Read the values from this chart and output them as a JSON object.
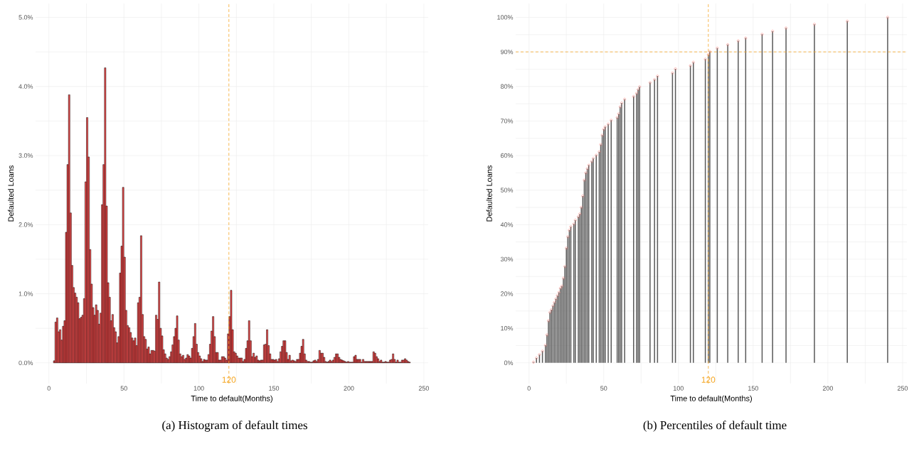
{
  "chart_data": [
    {
      "type": "histogram",
      "title": "(a) Histogram of default times",
      "xlabel": "Time to default(Months)",
      "ylabel": "Defaulted Loans",
      "color": "#f04848",
      "bins": [
        3,
        4,
        5,
        6,
        7,
        8,
        9,
        10,
        11,
        12,
        13,
        14,
        15,
        16,
        17,
        18,
        19,
        20,
        21,
        22,
        23,
        24,
        25,
        26,
        27,
        28,
        29,
        30,
        31,
        32,
        33,
        34,
        35,
        36,
        37,
        38,
        39,
        40,
        41,
        42,
        43,
        44,
        45,
        46,
        47,
        48,
        49,
        50,
        51,
        52,
        53,
        54,
        55,
        56,
        57,
        58,
        59,
        60,
        61,
        62,
        63,
        64,
        65,
        66,
        67,
        68,
        69,
        70,
        71,
        72,
        73,
        74,
        75,
        76,
        77,
        78,
        79,
        80,
        81,
        82,
        83,
        84,
        85,
        86,
        87,
        88,
        89,
        90,
        91,
        92,
        93,
        94,
        95,
        96,
        97,
        98,
        99,
        100,
        101,
        102,
        103,
        104,
        105,
        106,
        107,
        108,
        109,
        110,
        111,
        112,
        113,
        114,
        115,
        116,
        117,
        118,
        119,
        120,
        121,
        122,
        123,
        124,
        125,
        126,
        127,
        128,
        129,
        130,
        131,
        132,
        133,
        134,
        135,
        136,
        137,
        138,
        139,
        140,
        141,
        142,
        143,
        144,
        145,
        146,
        147,
        148,
        149,
        150,
        151,
        152,
        153,
        154,
        155,
        156,
        157,
        158,
        159,
        160,
        161,
        162,
        163,
        164,
        165,
        166,
        167,
        168,
        169,
        170,
        171,
        172,
        173,
        174,
        175,
        176,
        177,
        178,
        179,
        180,
        181,
        182,
        183,
        184,
        185,
        186,
        187,
        188,
        189,
        190,
        191,
        192,
        193,
        194,
        195,
        196,
        197,
        198,
        199,
        200,
        201,
        202,
        203,
        204,
        205,
        206,
        207,
        208,
        209,
        210,
        211,
        212,
        213,
        214,
        215,
        216,
        217,
        218,
        219,
        220,
        221,
        222,
        223,
        224,
        225,
        226,
        227,
        228,
        229,
        230,
        231,
        232,
        233,
        234,
        235,
        236,
        237,
        238,
        239,
        240,
        241
      ],
      "values": [
        0.03,
        0.59,
        0.65,
        0.45,
        0.48,
        0.33,
        0.53,
        0.61,
        1.89,
        2.87,
        3.88,
        2.17,
        1.41,
        1.09,
        1.01,
        0.95,
        0.87,
        0.64,
        0.66,
        0.69,
        0.93,
        2.62,
        3.55,
        2.98,
        1.64,
        1.14,
        0.8,
        0.69,
        0.84,
        0.76,
        0.56,
        0.72,
        2.29,
        2.87,
        4.27,
        2.27,
        1.16,
        0.95,
        0.61,
        0.7,
        0.51,
        0.45,
        0.29,
        0.38,
        1.3,
        1.69,
        2.54,
        1.53,
        0.76,
        0.54,
        0.51,
        0.44,
        0.36,
        0.32,
        0.36,
        0.25,
        0.87,
        0.95,
        1.84,
        0.7,
        0.38,
        0.34,
        0.2,
        0.23,
        0.13,
        0.18,
        0.18,
        0.17,
        0.69,
        0.63,
        1.17,
        0.5,
        0.39,
        0.19,
        0.13,
        0.07,
        0.05,
        0.09,
        0.16,
        0.26,
        0.38,
        0.5,
        0.68,
        0.33,
        0.13,
        0.09,
        0.11,
        0.05,
        0.07,
        0.12,
        0.1,
        0.07,
        0.21,
        0.38,
        0.57,
        0.27,
        0.15,
        0.1,
        0.06,
        0.02,
        0.05,
        0.04,
        0.04,
        0.12,
        0.27,
        0.46,
        0.67,
        0.38,
        0.15,
        0.15,
        0.04,
        0.04,
        0.09,
        0.09,
        0.07,
        0.04,
        0.42,
        0.67,
        1.05,
        0.48,
        0.16,
        0.14,
        0.1,
        0.07,
        0.07,
        0.07,
        0.02,
        0.05,
        0.21,
        0.32,
        0.61,
        0.32,
        0.09,
        0.14,
        0.08,
        0.1,
        0.04,
        0.03,
        0.04,
        0.04,
        0.26,
        0.27,
        0.48,
        0.25,
        0.13,
        0.05,
        0.05,
        0.04,
        0.05,
        0.02,
        0.06,
        0.16,
        0.24,
        0.32,
        0.32,
        0.15,
        0.05,
        0.11,
        0.03,
        0.04,
        0.03,
        0.02,
        0.05,
        0.05,
        0.14,
        0.24,
        0.34,
        0.13,
        0.04,
        0.02,
        0.02,
        0.01,
        0.01,
        0.03,
        0.04,
        0.02,
        0.05,
        0.18,
        0.14,
        0.14,
        0.08,
        0.02,
        0.01,
        0.02,
        0.04,
        0.02,
        0.04,
        0.08,
        0.13,
        0.13,
        0.08,
        0.05,
        0.04,
        0.03,
        0.02,
        0.01,
        0.02,
        0.01,
        0.01,
        0.01,
        0.09,
        0.11,
        0.05,
        0.05,
        0.05,
        0.01,
        0.05,
        0.02,
        0.02,
        0.02,
        0.02,
        0.02,
        0.02,
        0.16,
        0.14,
        0.09,
        0.06,
        0.02,
        0.04,
        0.01,
        0.01,
        0.02,
        0.01,
        0.01,
        0.04,
        0.05,
        0.13,
        0.05,
        0.01,
        0.04,
        0.01,
        0.01,
        0.04,
        0.04,
        0.06,
        0.04,
        0.02,
        0.01
      ],
      "xlim": [
        -8.9,
        252.9
      ],
      "ylim": [
        -0.3,
        5.2
      ],
      "xticks": [
        0,
        {
          "value": 25,
          "label": null
        },
        50,
        {
          "value": 75,
          "label": null
        },
        100,
        {
          "value": 125,
          "label": null
        },
        150,
        {
          "value": 175,
          "label": null
        },
        200,
        {
          "value": 225,
          "label": null
        },
        250
      ],
      "yticks": [
        {
          "value": 0,
          "label": "0.0%"
        },
        {
          "value": 0.5,
          "label": null
        },
        {
          "value": 1,
          "label": "1.0%"
        },
        {
          "value": 1.5,
          "label": null
        },
        {
          "value": 2,
          "label": "2.0%"
        },
        {
          "value": 2.5,
          "label": null
        },
        {
          "value": 3,
          "label": "3.0%"
        },
        {
          "value": 3.5,
          "label": null
        },
        {
          "value": 4,
          "label": "4.0%"
        },
        {
          "value": 4.5,
          "label": null
        },
        {
          "value": 5,
          "label": "5.0%"
        }
      ],
      "grid": true,
      "ref_lines": [
        {
          "axis": "x",
          "value": 120,
          "label": "120",
          "color": "#f5a623",
          "line_style": "dashed"
        }
      ]
    },
    {
      "type": "lollipop",
      "title": "(b) Percentiles of default time",
      "xlabel": "Time to default(Months)",
      "ylabel": "Defaulted Loans",
      "color": "#f8766d",
      "marker": "circle",
      "x": [
        3,
        5,
        7,
        9,
        11,
        12,
        13,
        14,
        15,
        16,
        17,
        18,
        19,
        20,
        21,
        22,
        23,
        24,
        25,
        26,
        27,
        28,
        30,
        31,
        33,
        34,
        35,
        36,
        37,
        38,
        39,
        40,
        42,
        43,
        45,
        47,
        48,
        49,
        50,
        51,
        53,
        55,
        59,
        60,
        61,
        62,
        64,
        70,
        72,
        73,
        74,
        81,
        84,
        86,
        96,
        98,
        108,
        110,
        118,
        120,
        121,
        126,
        133,
        140,
        145,
        156,
        163,
        172,
        191,
        213,
        240
      ],
      "values": [
        0.2,
        1.4,
        2.4,
        3.4,
        5.1,
        8.1,
        12.2,
        14.6,
        15.4,
        16.5,
        17.5,
        18.5,
        19.5,
        20.4,
        21.6,
        22.2,
        24.5,
        27.9,
        33.2,
        36.5,
        38.4,
        39.4,
        40.2,
        41.3,
        42.3,
        43.1,
        45.0,
        48.3,
        52.9,
        55.0,
        56.2,
        57.2,
        58.3,
        59.2,
        60.1,
        61.1,
        63.2,
        65.9,
        67.6,
        68.3,
        69.1,
        70.2,
        71.0,
        72.1,
        74.1,
        75.2,
        76.3,
        77.1,
        78.0,
        79.1,
        79.9,
        81.1,
        82.0,
        83.0,
        83.9,
        85.1,
        86.0,
        87.0,
        87.9,
        89.2,
        90.1,
        91.1,
        92.1,
        93.2,
        94.0,
        95.1,
        96.0,
        96.9,
        98.0,
        98.9,
        100.0
      ],
      "xlim": [
        -8.9,
        252.9
      ],
      "ylim": [
        -6,
        104
      ],
      "xticks": [
        0,
        {
          "value": 25,
          "label": null
        },
        50,
        {
          "value": 75,
          "label": null
        },
        100,
        {
          "value": 125,
          "label": null
        },
        150,
        {
          "value": 175,
          "label": null
        },
        200,
        {
          "value": 225,
          "label": null
        },
        250
      ],
      "yticks": [
        {
          "value": 0,
          "label": "0%"
        },
        {
          "value": 5,
          "label": null
        },
        {
          "value": 10,
          "label": "10%"
        },
        {
          "value": 15,
          "label": null
        },
        {
          "value": 20,
          "label": "20%"
        },
        {
          "value": 25,
          "label": null
        },
        {
          "value": 30,
          "label": "30%"
        },
        {
          "value": 35,
          "label": null
        },
        {
          "value": 40,
          "label": "40%"
        },
        {
          "value": 45,
          "label": null
        },
        {
          "value": 50,
          "label": "50%"
        },
        {
          "value": 55,
          "label": null
        },
        {
          "value": 60,
          "label": "60%"
        },
        {
          "value": 65,
          "label": null
        },
        {
          "value": 70,
          "label": "70%"
        },
        {
          "value": 75,
          "label": null
        },
        {
          "value": 80,
          "label": "80%"
        },
        {
          "value": 85,
          "label": null
        },
        {
          "value": 90,
          "label": "90%"
        },
        {
          "value": 95,
          "label": null
        },
        {
          "value": 100,
          "label": "100%"
        }
      ],
      "grid": true,
      "ref_lines": [
        {
          "axis": "x",
          "value": 120,
          "label": "120",
          "color": "#f5a623",
          "line_style": "dashed"
        },
        {
          "axis": "y",
          "value": 90,
          "color": "#f5a623",
          "line_style": "dashed"
        }
      ]
    }
  ]
}
